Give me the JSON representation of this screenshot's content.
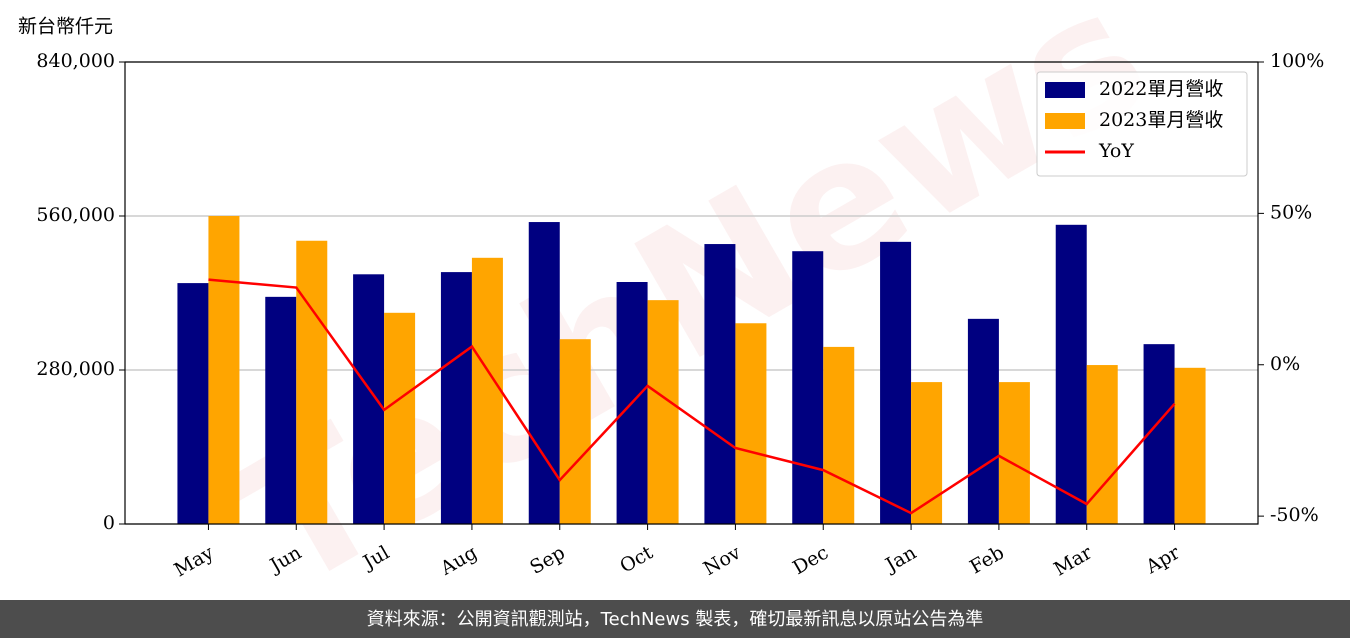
{
  "chart_data": {
    "type": "bar",
    "y_label": "新台幣仟元",
    "watermark": "TechNews",
    "source": "資料來源：公開資訊觀測站，TechNews 製表，確切最新訊息以原站公告為準",
    "categories": [
      "May",
      "Jun",
      "Jul",
      "Aug",
      "Sep",
      "Oct",
      "Nov",
      "Dec",
      "Jan",
      "Feb",
      "Mar",
      "Apr"
    ],
    "series": [
      {
        "name": "2022單月營收",
        "color": "#000080",
        "type": "bar",
        "values": [
          438000,
          413000,
          454000,
          458000,
          549000,
          440000,
          509000,
          496000,
          513000,
          373000,
          544000,
          327000
        ]
      },
      {
        "name": "2023單月營收",
        "color": "#ffa500",
        "type": "bar",
        "values": [
          560000,
          515000,
          384000,
          484000,
          336000,
          407000,
          365000,
          322000,
          258000,
          258000,
          289000,
          284000
        ]
      },
      {
        "name": "YoY",
        "color": "#ff0000",
        "type": "line",
        "axis": "y2",
        "values": [
          28.1,
          25.5,
          -14.9,
          6.0,
          -38.1,
          -7.0,
          -27.5,
          -34.8,
          -49.0,
          -30.1,
          -46.0,
          -12.9
        ]
      }
    ],
    "ylim": [
      0,
      840000
    ],
    "yticks": [
      0,
      {
        "value": 280000,
        "label": "280,000"
      },
      {
        "value": 560000,
        "label": "560,000"
      },
      {
        "value": 840000,
        "label": "840,000"
      }
    ],
    "y2lim": [
      -52.6,
      100
    ],
    "y2ticks": [
      {
        "value": -50,
        "label": "-50%"
      },
      {
        "value": 0,
        "label": "0%"
      },
      {
        "value": 50,
        "label": "50%"
      },
      {
        "value": 100,
        "label": "100%"
      }
    ],
    "grid": true,
    "legend": "upper right"
  }
}
